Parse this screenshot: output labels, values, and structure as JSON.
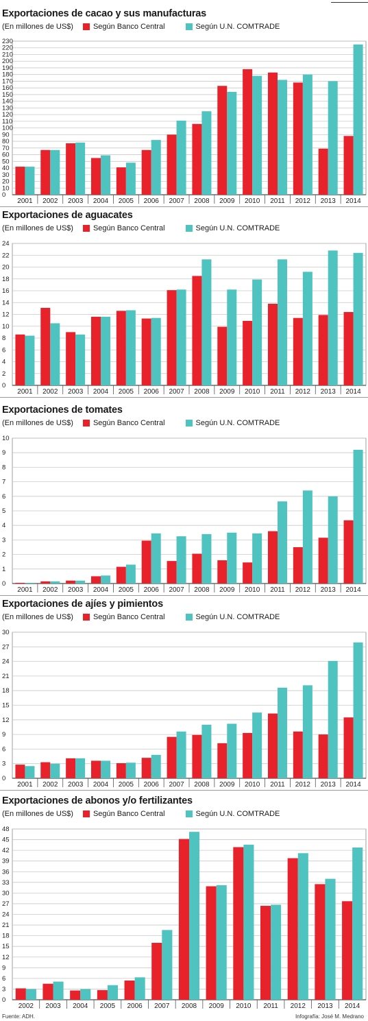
{
  "colors": {
    "banco": "#e8222b",
    "comtrade": "#4fc3bf",
    "grid": "#c8c8c8",
    "axis": "#222222"
  },
  "legend": {
    "unit": "(En millones de US$)",
    "banco": "Según Banco Central",
    "comtrade": "Según U.N. COMTRADE"
  },
  "footer": {
    "source": "Fuente: ADH.",
    "credit": "Infografía: José M. Medrano"
  },
  "chart_data": [
    {
      "type": "bar",
      "title": "Exportaciones de cacao y sus manufacturas",
      "categories": [
        "2001",
        "2002",
        "2003",
        "2004",
        "2005",
        "2006",
        "2007",
        "2008",
        "2009",
        "2010",
        "2011",
        "2012",
        "2013",
        "2014"
      ],
      "series": [
        {
          "name": "Según Banco Central",
          "values": [
            42,
            67,
            77,
            55,
            41,
            67,
            90,
            106,
            163,
            188,
            183,
            168,
            69,
            88
          ]
        },
        {
          "name": "Según U.N. COMTRADE",
          "values": [
            42,
            67,
            78,
            59,
            48,
            82,
            111,
            125,
            154,
            178,
            172,
            180,
            170,
            225
          ]
        }
      ],
      "ylim": [
        0,
        230
      ],
      "yticks_step": 10
    },
    {
      "type": "bar",
      "title": "Exportaciones de aguacates",
      "categories": [
        "2001",
        "2002",
        "2003",
        "2004",
        "2005",
        "2006",
        "2007",
        "2008",
        "2009",
        "2010",
        "2011",
        "2012",
        "2013",
        "2014"
      ],
      "series": [
        {
          "name": "Según Banco Central",
          "values": [
            8.6,
            13.1,
            9.0,
            11.6,
            12.6,
            11.3,
            16.1,
            18.5,
            9.9,
            10.9,
            13.8,
            11.4,
            11.9,
            12.4
          ]
        },
        {
          "name": "Según U.N. COMTRADE",
          "values": [
            8.4,
            10.5,
            8.6,
            11.6,
            12.7,
            11.4,
            16.2,
            21.3,
            16.2,
            17.9,
            21.3,
            19.2,
            22.8,
            22.4
          ]
        }
      ],
      "ylim": [
        0,
        24
      ],
      "yticks_step": 2
    },
    {
      "type": "bar",
      "title": "Exportaciones de tomates",
      "categories": [
        "2001",
        "2002",
        "2003",
        "2004",
        "2005",
        "2006",
        "2007",
        "2008",
        "2009",
        "2010",
        "2011",
        "2012",
        "2013",
        "2014"
      ],
      "series": [
        {
          "name": "Según Banco Central",
          "values": [
            0.05,
            0.15,
            0.2,
            0.5,
            1.15,
            2.95,
            1.55,
            2.05,
            1.6,
            1.45,
            3.6,
            2.5,
            3.15,
            4.35
          ]
        },
        {
          "name": "Según U.N. COMTRADE",
          "values": [
            0.05,
            0.15,
            0.2,
            0.55,
            1.3,
            3.45,
            3.25,
            3.4,
            3.5,
            3.45,
            5.65,
            6.4,
            6.0,
            9.2
          ]
        }
      ],
      "ylim": [
        0,
        10
      ],
      "yticks_step": 1
    },
    {
      "type": "bar",
      "title": "Exportaciones de ajíes y pimientos",
      "categories": [
        "2001",
        "2002",
        "2003",
        "2004",
        "2005",
        "2006",
        "2007",
        "2008",
        "2009",
        "2010",
        "2011",
        "2012",
        "2013",
        "2014"
      ],
      "series": [
        {
          "name": "Según Banco Central",
          "values": [
            2.8,
            3.3,
            4.1,
            3.6,
            3.1,
            4.2,
            8.5,
            8.9,
            7.2,
            9.3,
            13.3,
            9.6,
            9.0,
            12.5
          ]
        },
        {
          "name": "Según U.N. COMTRADE",
          "values": [
            2.5,
            3.0,
            4.1,
            3.6,
            3.2,
            4.8,
            9.6,
            11.0,
            11.2,
            13.5,
            18.6,
            19.1,
            24.1,
            27.9
          ]
        }
      ],
      "ylim": [
        0,
        30
      ],
      "yticks_step": 3
    },
    {
      "type": "bar",
      "title": "Exportaciones de abonos y/o fertilizantes",
      "categories": [
        "2002",
        "2003",
        "2004",
        "2005",
        "2006",
        "2007",
        "2008",
        "2009",
        "2010",
        "2011",
        "2012",
        "2013",
        "2014"
      ],
      "series": [
        {
          "name": "Según Banco Central",
          "values": [
            3.2,
            4.5,
            2.6,
            2.7,
            5.4,
            16.0,
            45.2,
            31.9,
            42.9,
            26.4,
            39.8,
            32.5,
            27.7
          ]
        },
        {
          "name": "Según U.N. COMTRADE",
          "values": [
            3.0,
            5.1,
            3.0,
            4.1,
            6.3,
            19.6,
            47.2,
            32.2,
            43.6,
            26.7,
            41.2,
            34.0,
            42.8
          ]
        }
      ],
      "ylim": [
        0,
        48
      ],
      "yticks_step": 3
    }
  ]
}
